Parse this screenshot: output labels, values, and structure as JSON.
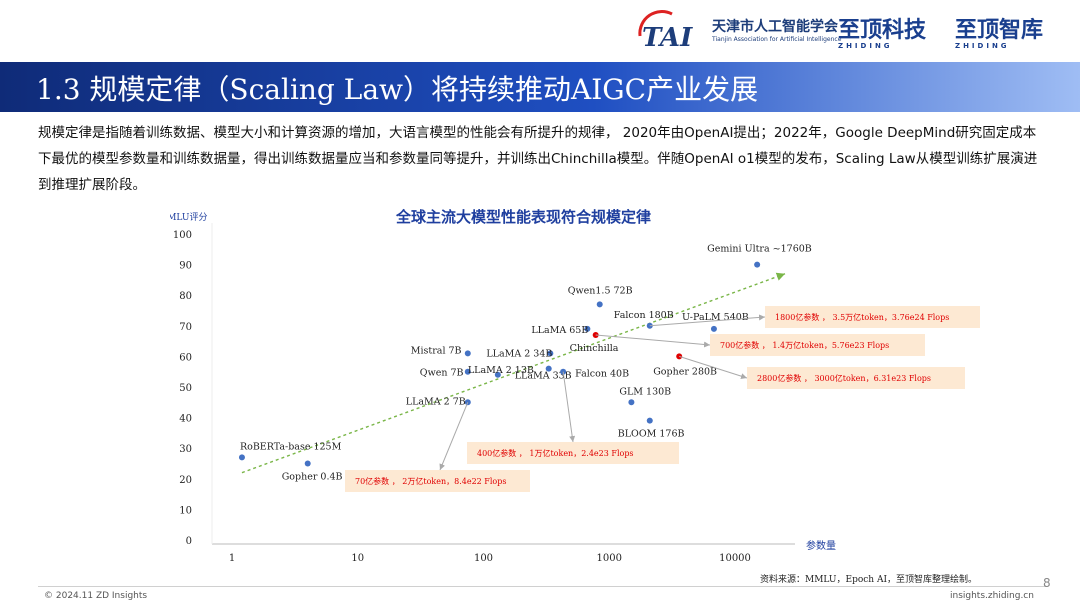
{
  "header": {
    "tai_name": "天津市人工智能学会",
    "tai_subtitle": "Tianjin Association for Artificial Intelligence",
    "brand1_cn": "至顶科技",
    "brand1_en": "ZHIDING",
    "brand2_cn": "至顶智库",
    "brand2_en": "ZHIDING"
  },
  "slide": {
    "title": "1.3 规模定律（Scaling Law）将持续推动AIGC产业发展",
    "intro": "规模定律是指随着训练数据、模型大小和计算资源的增加，大语言模型的性能会有所提升的规律， 2020年由OpenAI提出；2022年，Google DeepMind研究固定成本下最优的模型参数量和训练数据量，得出训练数据量应当和参数量同等提升，并训练出Chinchilla模型。伴随OpenAI o1模型的发布，Scaling Law从模型训练扩展演进到推理扩展阶段。"
  },
  "colors": {
    "title_bar": "#1f4fc2",
    "point_blue": "#4472c4",
    "point_red": "#e00000",
    "trend": "#7ab648",
    "callout_bg": "#fde9d3",
    "callout_text": "#e00000",
    "chart_title": "#1f3f9f"
  },
  "chart_data": {
    "type": "scatter",
    "title": "全球主流大模型性能表现符合规模定律",
    "xlabel": "参数量",
    "ylabel": "MMLU评分",
    "x_scale": "log",
    "xlim": [
      1,
      30000
    ],
    "ylim": [
      0,
      100
    ],
    "x_ticks": [
      1,
      10,
      100,
      1000,
      10000
    ],
    "x_tick_labels": [
      "1",
      "10",
      "100",
      "1000",
      "10000"
    ],
    "y_ticks": [
      0,
      10,
      20,
      30,
      40,
      50,
      60,
      70,
      80,
      90,
      100
    ],
    "points": [
      {
        "label": "RoBERTa-base 125M",
        "x": 1.2,
        "y": 27,
        "color": "blue"
      },
      {
        "label": "Gopher 0.4B",
        "x": 4.0,
        "y": 25,
        "color": "blue"
      },
      {
        "label": "LLaMA 2 7B",
        "x": 75,
        "y": 45,
        "color": "blue"
      },
      {
        "label": "Mistral 7B",
        "x": 75,
        "y": 61,
        "color": "blue"
      },
      {
        "label": "Qwen 7B",
        "x": 75,
        "y": 55,
        "color": "blue"
      },
      {
        "label": "LLaMA 2 13B",
        "x": 130,
        "y": 54,
        "color": "blue"
      },
      {
        "label": "LLaMA 2 34B",
        "x": 340,
        "y": 61,
        "color": "blue"
      },
      {
        "label": "LLaMA 33B",
        "x": 330,
        "y": 56,
        "color": "blue"
      },
      {
        "label": "Falcon 40B",
        "x": 430,
        "y": 55,
        "color": "blue"
      },
      {
        "label": "LLaMA 65B",
        "x": 670,
        "y": 69,
        "color": "blue"
      },
      {
        "label": "Chinchilla",
        "x": 780,
        "y": 67,
        "color": "red"
      },
      {
        "label": "Qwen1.5 72B",
        "x": 840,
        "y": 77,
        "color": "blue"
      },
      {
        "label": "GLM 130B",
        "x": 1500,
        "y": 45,
        "color": "blue"
      },
      {
        "label": "Falcon 180B",
        "x": 2100,
        "y": 70,
        "color": "blue"
      },
      {
        "label": "BLOOM 176B",
        "x": 2100,
        "y": 39,
        "color": "blue"
      },
      {
        "label": "Gopher 280B",
        "x": 3600,
        "y": 60,
        "color": "red"
      },
      {
        "label": "U-PaLM 540B",
        "x": 6800,
        "y": 69,
        "color": "blue"
      },
      {
        "label": "Gemini Ultra ~1760B",
        "x": 15000,
        "y": 90,
        "color": "blue"
      }
    ],
    "trend_line": {
      "x": [
        1.2,
        25000
      ],
      "y": [
        22,
        87
      ]
    },
    "callouts": [
      {
        "text": "70亿参数 ， 2万亿token，8.4e22 Flops",
        "points_to": "LLaMA 2 7B"
      },
      {
        "text": "400亿参数 ， 1万亿token，2.4e23 Flops",
        "points_to": "Falcon 40B"
      },
      {
        "text": "700亿参数 ， 1.4万亿token，5.76e23 Flops",
        "points_to": "Chinchilla"
      },
      {
        "text": "2800亿参数 ， 3000亿token，6.31e23 Flops",
        "points_to": "Gopher 280B"
      },
      {
        "text": "1800亿参数 ， 3.5万亿token，3.76e24 Flops",
        "points_to": "Falcon 180B"
      }
    ],
    "source": "资料来源：MMLU，Epoch AI，至顶智库整理绘制。"
  },
  "footer": {
    "left": "© 2024.11 ZD Insights",
    "right": "insights.zhiding.cn",
    "page": "8"
  }
}
